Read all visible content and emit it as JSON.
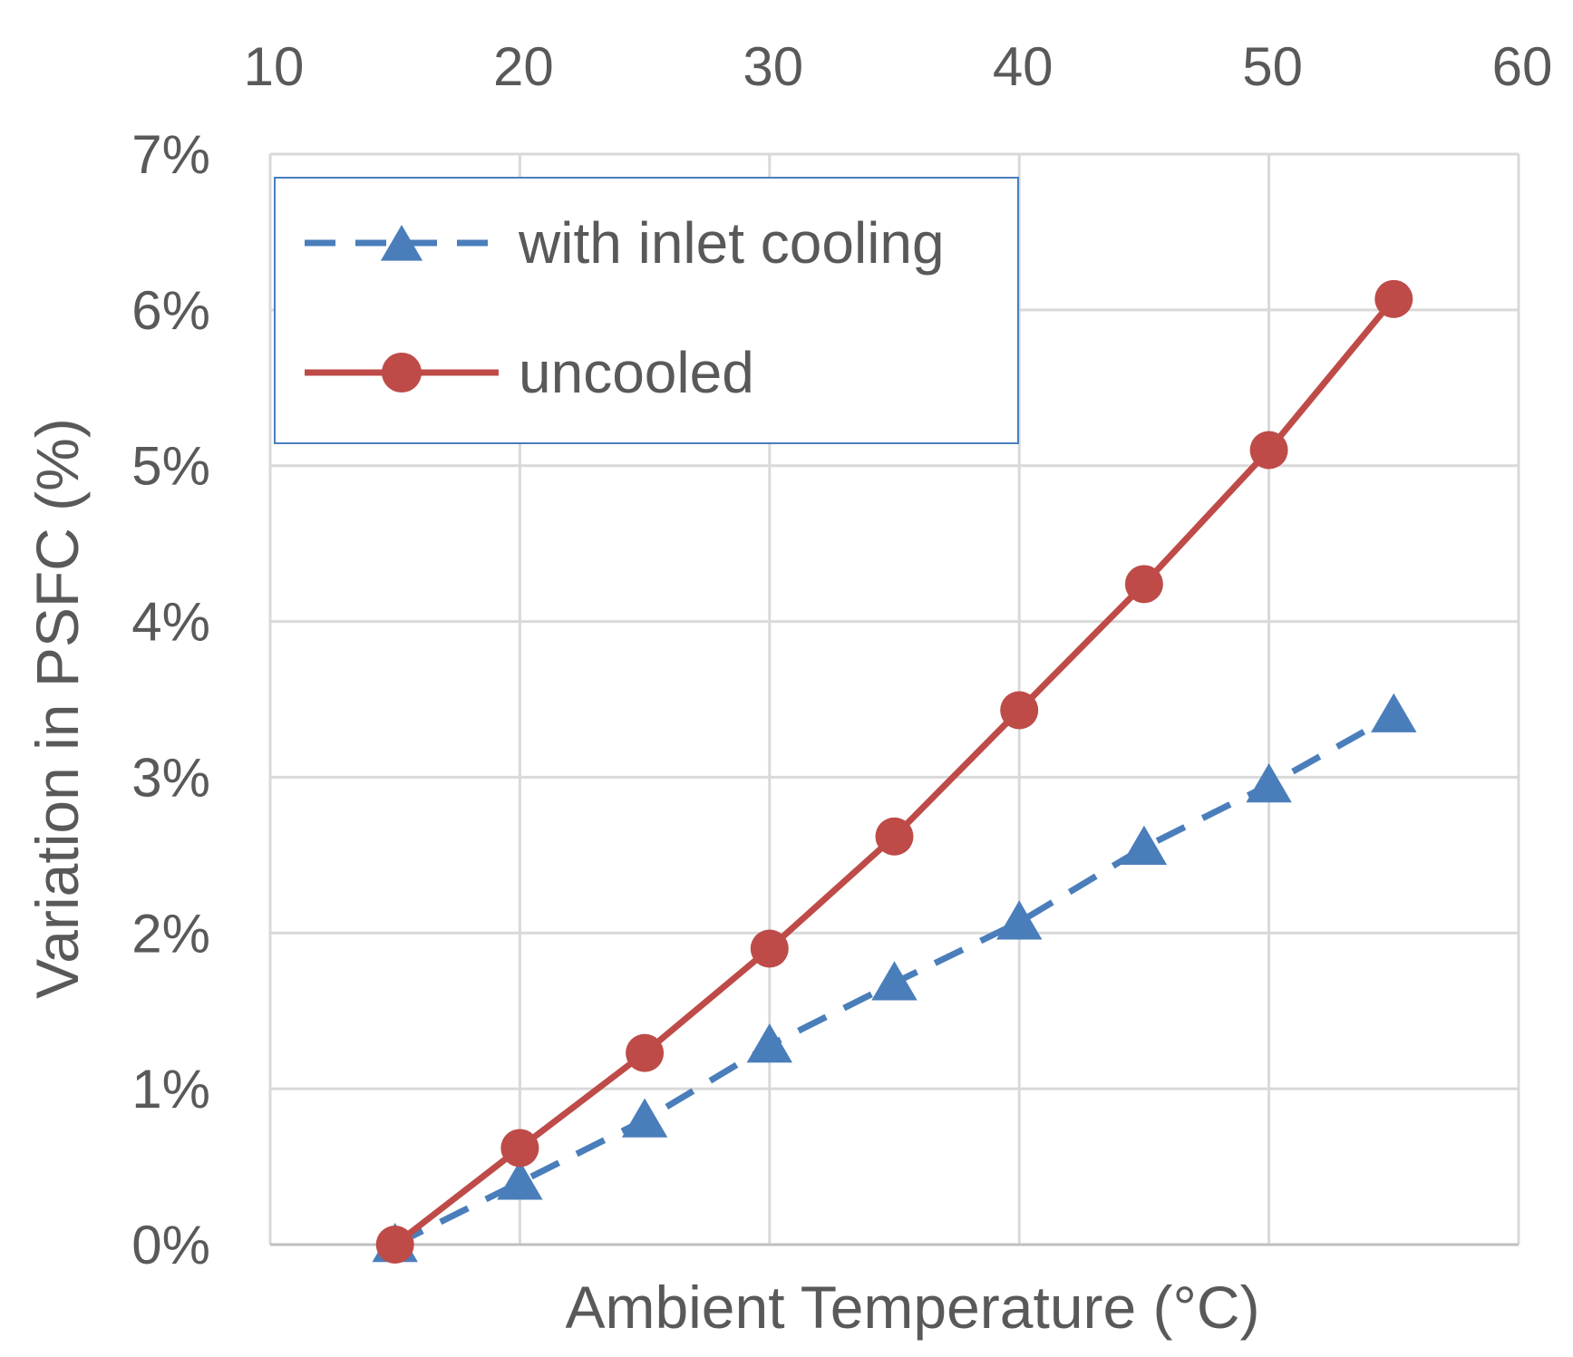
{
  "chart_data": {
    "type": "line",
    "title": "",
    "xlabel": "Ambient  Temperature (°C)",
    "ylabel": "Variation in PSFC (%)",
    "xlim": [
      10,
      60
    ],
    "ylim": [
      0,
      0.07
    ],
    "x_ticks": [
      10,
      20,
      30,
      40,
      50,
      60
    ],
    "x_tick_labels": [
      "10",
      "20",
      "30",
      "40",
      "50",
      "60"
    ],
    "y_ticks": [
      0,
      0.01,
      0.02,
      0.03,
      0.04,
      0.05,
      0.06,
      0.07
    ],
    "y_tick_labels": [
      "0%",
      "1%",
      "2%",
      "3%",
      "4%",
      "5%",
      "6%",
      "7%"
    ],
    "x_axis_position": "top",
    "grid": true,
    "legend_position": "top-left",
    "series": [
      {
        "name": "with inlet cooling",
        "color": "#4a7ebb",
        "style": "dashed",
        "marker": "triangle",
        "x": [
          15,
          20,
          25,
          30,
          35,
          40,
          45,
          50,
          55
        ],
        "y": [
          0.0,
          0.004,
          0.008,
          0.0128,
          0.0168,
          0.0207,
          0.0255,
          0.0295,
          0.034
        ]
      },
      {
        "name": "uncooled",
        "color": "#be4b48",
        "style": "solid",
        "marker": "circle",
        "x": [
          15,
          20,
          25,
          30,
          35,
          40,
          45,
          50,
          55
        ],
        "y": [
          0.0,
          0.0062,
          0.0123,
          0.019,
          0.0262,
          0.0343,
          0.0424,
          0.051,
          0.0607
        ]
      }
    ]
  }
}
